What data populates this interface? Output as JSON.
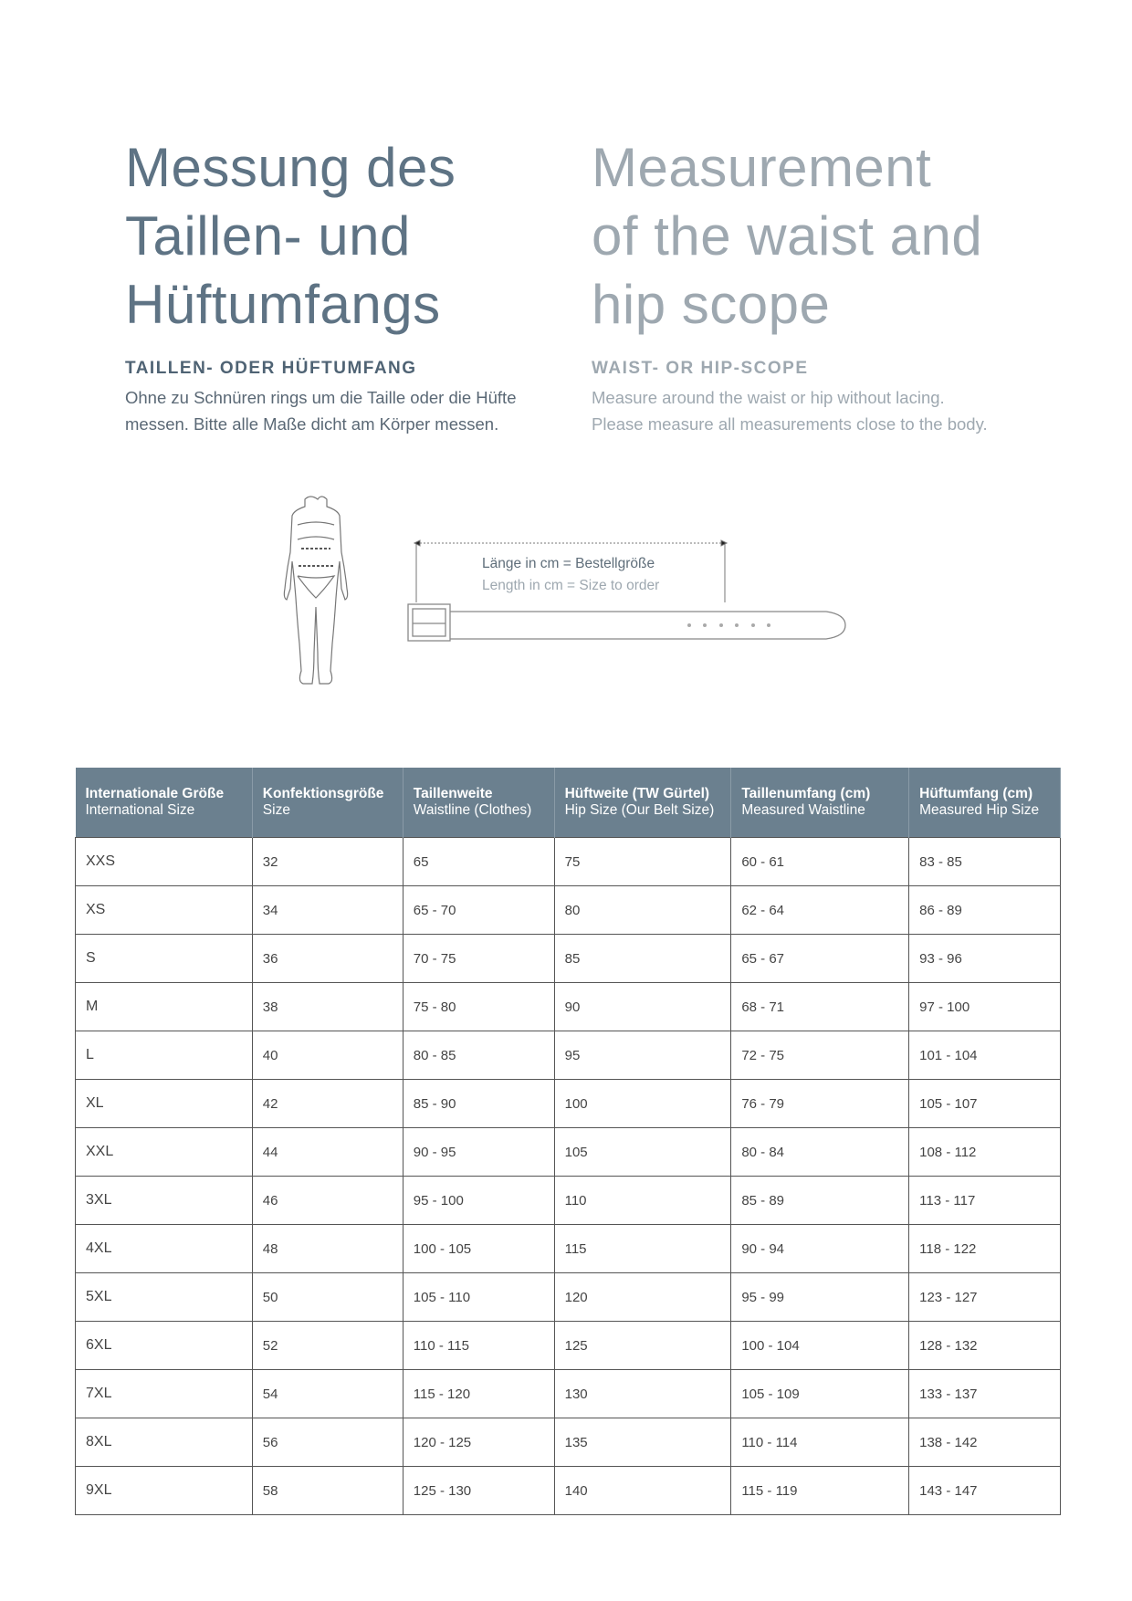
{
  "german": {
    "title": [
      "Messung des",
      "Taillen- und",
      "Hüftumfangs"
    ],
    "subheading": "TAILLEN- ODER HÜFTUMFANG",
    "description": [
      "Ohne zu Schnüren rings um die Taille oder die Hüfte",
      "messen. Bitte alle Maße dicht am Körper messen."
    ]
  },
  "english": {
    "title": [
      "Measurement",
      "of the waist and",
      "hip scope"
    ],
    "subheading": "WAIST- OR HIP-SCOPE",
    "description": [
      "Measure around the waist or hip without lacing.",
      "Please measure all measurements close to the body."
    ]
  },
  "illustration": {
    "label_de": "Länge in cm = Bestellgröße",
    "label_en": "Length in cm = Size to order",
    "icons": [
      "body-figure",
      "belt"
    ]
  },
  "colors": {
    "title_de": "#5e7384",
    "title_en": "#9ea8b0",
    "table_header": "#6b808f"
  },
  "table": {
    "headers": [
      {
        "de": "Internationale Größe",
        "en": "International Size"
      },
      {
        "de": "Konfektionsgröße",
        "en": "Size"
      },
      {
        "de": "Taillenweite",
        "en": "Waistline (Clothes)"
      },
      {
        "de": "Hüftweite (TW Gürtel)",
        "en": "Hip Size (Our Belt Size)"
      },
      {
        "de": "Taillenumfang (cm)",
        "en": "Measured Waistline"
      },
      {
        "de": "Hüftumfang (cm)",
        "en": "Measured Hip Size"
      }
    ],
    "rows": [
      [
        "XXS",
        "32",
        "65",
        "75",
        "60 - 61",
        "83 - 85"
      ],
      [
        "XS",
        "34",
        "65 - 70",
        "80",
        "62 - 64",
        "86 - 89"
      ],
      [
        "S",
        "36",
        "70 - 75",
        "85",
        "65 - 67",
        "93 - 96"
      ],
      [
        "M",
        "38",
        "75 - 80",
        "90",
        "68 - 71",
        "97 - 100"
      ],
      [
        "L",
        "40",
        "80 - 85",
        "95",
        "72 - 75",
        "101 - 104"
      ],
      [
        "XL",
        "42",
        "85 - 90",
        "100",
        "76 - 79",
        "105 - 107"
      ],
      [
        "XXL",
        "44",
        "90 - 95",
        "105",
        "80 - 84",
        "108 - 112"
      ],
      [
        "3XL",
        "46",
        "95 - 100",
        "110",
        "85 - 89",
        "113 - 117"
      ],
      [
        "4XL",
        "48",
        "100 - 105",
        "115",
        "90 - 94",
        "118 - 122"
      ],
      [
        "5XL",
        "50",
        "105 - 110",
        "120",
        "95 - 99",
        "123 - 127"
      ],
      [
        "6XL",
        "52",
        "110 - 115",
        "125",
        "100 - 104",
        "128 - 132"
      ],
      [
        "7XL",
        "54",
        "115 - 120",
        "130",
        "105 - 109",
        "133 - 137"
      ],
      [
        "8XL",
        "56",
        "120 - 125",
        "135",
        "110 - 114",
        "138 - 142"
      ],
      [
        "9XL",
        "58",
        "125 - 130",
        "140",
        "115 - 119",
        "143 - 147"
      ]
    ]
  }
}
